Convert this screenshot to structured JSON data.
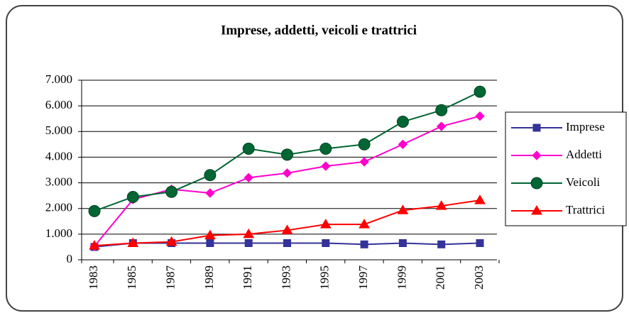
{
  "chart_data": {
    "type": "line",
    "title": "Imprese, addetti, veicoli e trattrici",
    "categories": [
      "1983",
      "1985",
      "1987",
      "1989",
      "1991",
      "1993",
      "1995",
      "1997",
      "1999",
      "2001",
      "2003"
    ],
    "series": [
      {
        "name": "Imprese",
        "color": "#333399",
        "marker": "square",
        "values": [
          500,
          650,
          650,
          650,
          650,
          650,
          650,
          600,
          650,
          600,
          650
        ]
      },
      {
        "name": "Addetti",
        "color": "#ff00cc",
        "marker": "diamond",
        "values": [
          530,
          2350,
          2750,
          2600,
          3200,
          3380,
          3650,
          3820,
          4500,
          5200,
          5600
        ]
      },
      {
        "name": "Veicoli",
        "color": "#006633",
        "marker": "circle",
        "values": [
          1900,
          2450,
          2650,
          3300,
          4330,
          4100,
          4330,
          4500,
          5380,
          5830,
          6550
        ]
      },
      {
        "name": "Trattrici",
        "color": "#ff0000",
        "marker": "triangle",
        "values": [
          550,
          650,
          700,
          950,
          1000,
          1150,
          1380,
          1380,
          1930,
          2100,
          2320
        ]
      }
    ],
    "ylim": [
      0,
      7000
    ],
    "yticks": [
      0,
      {
        "value": 1000,
        "label": "1.000"
      },
      {
        "value": 2000,
        "label": "2.000"
      },
      {
        "value": 3000,
        "label": "3.000"
      },
      {
        "value": 4000,
        "label": "4.000"
      },
      {
        "value": 5000,
        "label": "5.000"
      },
      {
        "value": 6000,
        "label": "6.000"
      },
      {
        "value": 7000,
        "label": "7.000"
      }
    ],
    "grid": true,
    "legend": "right"
  }
}
